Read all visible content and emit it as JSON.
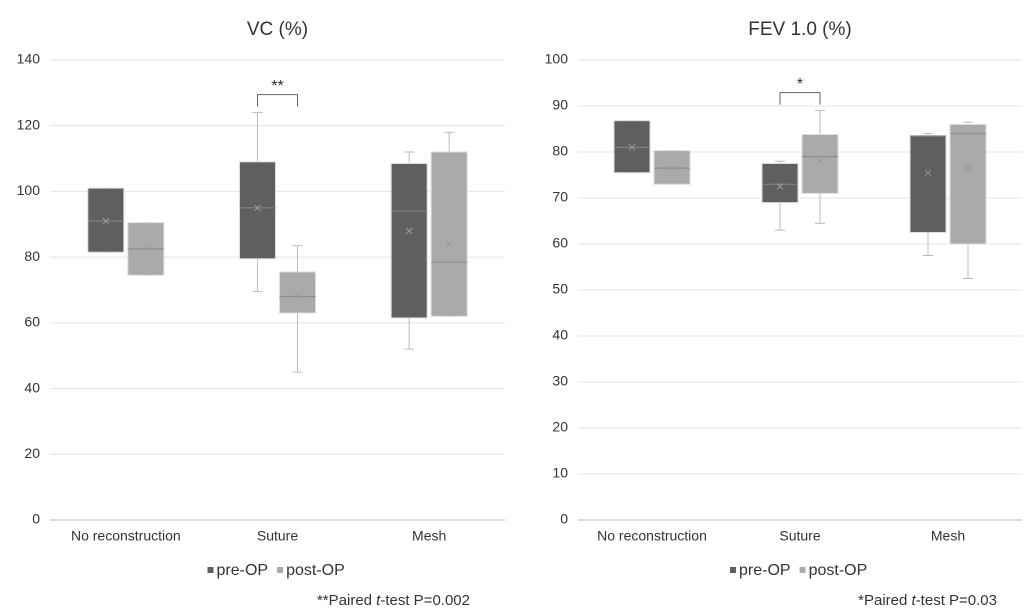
{
  "chart_data": [
    {
      "type": "box",
      "title": "VC (%)",
      "annotation": "**",
      "footnote": {
        "prefix": "**Paired ",
        "italic": "t",
        "suffix": "-test P=0.002"
      },
      "categories": [
        "No reconstruction",
        "Suture",
        "Mesh"
      ],
      "ylim": [
        0,
        140
      ],
      "yticks": [
        0,
        20,
        40,
        60,
        80,
        100,
        120,
        140
      ],
      "grid": true,
      "series": [
        {
          "name": "pre-OP",
          "color": "#5f5f5f",
          "values": [
            {
              "min": 81.5,
              "q1": 81.5,
              "median": 91,
              "q3": 101,
              "max": 101,
              "mean": 91
            },
            {
              "min": 69.5,
              "q1": 79.5,
              "median": 95,
              "q3": 109,
              "max": 124,
              "mean": 95
            },
            {
              "min": 52,
              "q1": 61.5,
              "median": 94,
              "q3": 108.5,
              "max": 112,
              "mean": 88
            }
          ]
        },
        {
          "name": "post-OP",
          "color": "#aaaaaa",
          "values": [
            {
              "min": 74.5,
              "q1": 74.5,
              "median": 82.5,
              "q3": 90.5,
              "max": 90.5,
              "mean": 82.5
            },
            {
              "min": 45,
              "q1": 63,
              "median": 68,
              "q3": 75.5,
              "max": 83.5,
              "mean": 68
            },
            {
              "min": 62,
              "q1": 62,
              "median": 78.5,
              "q3": 112,
              "max": 118,
              "mean": 84
            }
          ]
        }
      ]
    },
    {
      "type": "box",
      "title": "FEV 1.0  (%)",
      "annotation": "*",
      "footnote": {
        "prefix": "*Paired ",
        "italic": "t",
        "suffix": "-test P=0.03"
      },
      "categories": [
        "No reconstruction",
        "Suture",
        "Mesh"
      ],
      "ylim": [
        0,
        100
      ],
      "yticks": [
        0,
        10,
        20,
        30,
        40,
        50,
        60,
        70,
        80,
        90,
        100
      ],
      "grid": true,
      "series": [
        {
          "name": "pre-OP",
          "color": "#5f5f5f",
          "values": [
            {
              "min": 75.5,
              "q1": 75.5,
              "median": 81,
              "q3": 86.8,
              "max": 86.8,
              "mean": 81
            },
            {
              "min": 63,
              "q1": 69,
              "median": 73,
              "q3": 77.5,
              "max": 78,
              "mean": 72.5
            },
            {
              "min": 57.5,
              "q1": 62.5,
              "median": 83.5,
              "q3": 83.5,
              "max": 84,
              "mean": 75.5
            }
          ]
        },
        {
          "name": "post-OP",
          "color": "#aaaaaa",
          "values": [
            {
              "min": 73,
              "q1": 73,
              "median": 76.5,
              "q3": 80.3,
              "max": 80.3,
              "mean": 76.5
            },
            {
              "min": 64.5,
              "q1": 71,
              "median": 79,
              "q3": 83.8,
              "max": 89,
              "mean": 78
            },
            {
              "min": 52.5,
              "q1": 60,
              "median": 84,
              "q3": 86,
              "max": 86.5,
              "mean": 76.5
            }
          ]
        }
      ]
    }
  ]
}
